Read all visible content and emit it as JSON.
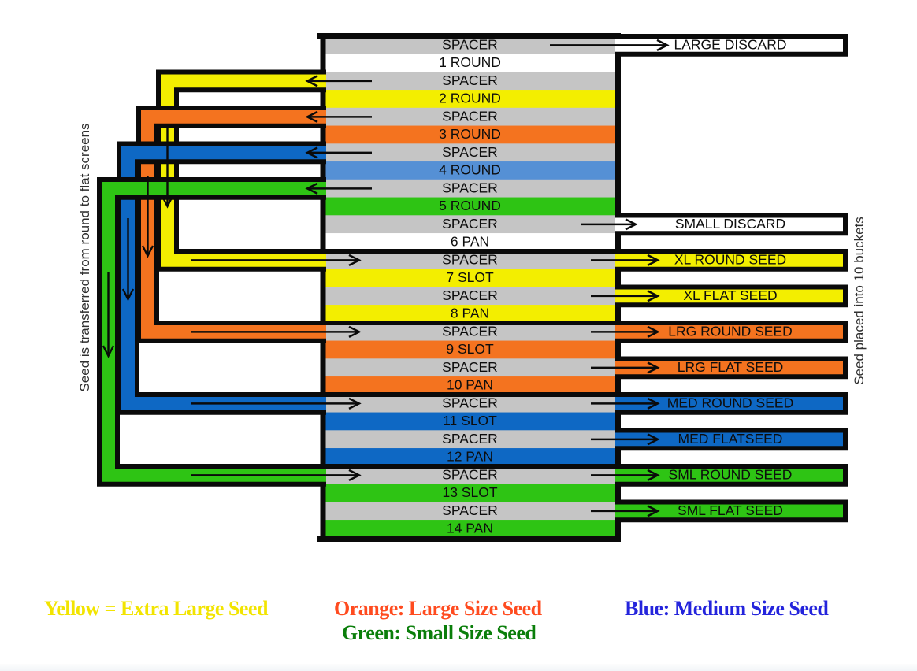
{
  "diagram": {
    "left_label": "Seed is transferred from round to flat screens",
    "right_label": "Seed placed into 10 buckets",
    "rows": [
      {
        "label": "SPACER",
        "color": "gray"
      },
      {
        "label": "1 ROUND",
        "color": "white"
      },
      {
        "label": "SPACER",
        "color": "gray"
      },
      {
        "label": "2 ROUND",
        "color": "yellow"
      },
      {
        "label": "SPACER",
        "color": "gray"
      },
      {
        "label": "3 ROUND",
        "color": "orange"
      },
      {
        "label": "SPACER",
        "color": "gray"
      },
      {
        "label": "4 ROUND",
        "color": "blue_light"
      },
      {
        "label": "SPACER",
        "color": "gray"
      },
      {
        "label": "5 ROUND",
        "color": "green"
      },
      {
        "label": "SPACER",
        "color": "gray"
      },
      {
        "label": "6 PAN",
        "color": "white"
      },
      {
        "label": "SPACER",
        "color": "gray"
      },
      {
        "label": "7 SLOT",
        "color": "yellow"
      },
      {
        "label": "SPACER",
        "color": "gray"
      },
      {
        "label": "8 PAN",
        "color": "yellow"
      },
      {
        "label": "SPACER",
        "color": "gray"
      },
      {
        "label": "9 SLOT",
        "color": "orange"
      },
      {
        "label": "SPACER",
        "color": "gray"
      },
      {
        "label": "10 PAN",
        "color": "orange"
      },
      {
        "label": "SPACER",
        "color": "gray"
      },
      {
        "label": "11 SLOT",
        "color": "blue"
      },
      {
        "label": "SPACER",
        "color": "gray"
      },
      {
        "label": "12 PAN",
        "color": "blue"
      },
      {
        "label": "SPACER",
        "color": "gray"
      },
      {
        "label": "13 SLOT",
        "color": "green"
      },
      {
        "label": "SPACER",
        "color": "gray"
      },
      {
        "label": "14 PAN",
        "color": "green"
      }
    ],
    "buckets": [
      {
        "label": "LARGE DISCARD",
        "color": "white",
        "row": 1
      },
      {
        "label": "SMALL DISCARD",
        "color": "white",
        "row": 11
      },
      {
        "label": "XL ROUND SEED",
        "color": "yellow",
        "row": 13
      },
      {
        "label": "XL FLAT SEED",
        "color": "yellow",
        "row": 15
      },
      {
        "label": "LRG ROUND SEED",
        "color": "orange",
        "row": 17
      },
      {
        "label": "LRG FLAT SEED",
        "color": "orange",
        "row": 19
      },
      {
        "label": "MED ROUND SEED",
        "color": "blue",
        "row": 21
      },
      {
        "label": "MED FLATSEED",
        "color": "blue",
        "row": 23
      },
      {
        "label": "SML ROUND SEED",
        "color": "green",
        "row": 25
      },
      {
        "label": "SML FLAT SEED",
        "color": "green",
        "row": 27
      }
    ],
    "brackets": [
      {
        "color": "yellow",
        "from_row": 3,
        "to_row": 13
      },
      {
        "color": "orange",
        "from_row": 5,
        "to_row": 17
      },
      {
        "color": "blue",
        "from_row": 7,
        "to_row": 21
      },
      {
        "color": "green",
        "from_row": 9,
        "to_row": 25
      }
    ],
    "group_divider_rows": [
      13,
      17,
      21,
      25
    ]
  },
  "colors": {
    "gray": "#C5C5C5",
    "yellow": "#F3EE00",
    "orange": "#F4731F",
    "blue": "#0E68C4",
    "blue_light": "#5590D5",
    "green": "#2EC414",
    "white": "#FFFFFF",
    "outline": "#0A0A0A",
    "caption": "#2F2F2F"
  },
  "legend": {
    "items": [
      {
        "text": "Yellow = Extra Large Seed",
        "color": "#F2E400"
      },
      {
        "text": "Orange: Large Size Seed",
        "color": "#FF4B1F"
      },
      {
        "text": "Blue: Medium Size Seed",
        "color": "#2424DC"
      },
      {
        "text": "Green: Small Size Seed",
        "color": "#0A7E0A"
      }
    ]
  }
}
